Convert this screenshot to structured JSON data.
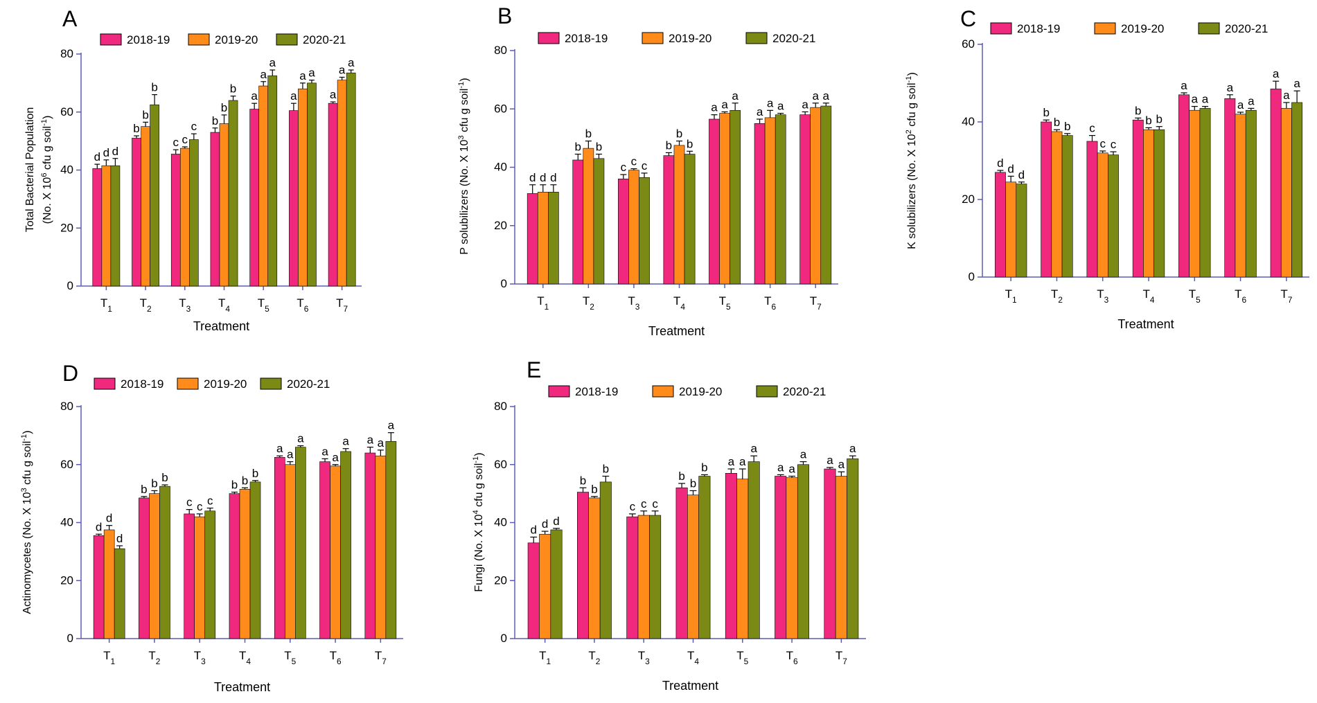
{
  "legend": {
    "labels": [
      "2018-19",
      "2019-20",
      "2020-21"
    ],
    "colors": [
      "#f0297e",
      "#ff8c1a",
      "#7b8a14"
    ]
  },
  "chart_data": [
    {
      "panel": "A",
      "type": "bar",
      "categories": [
        "T1",
        "T2",
        "T3",
        "T4",
        "T5",
        "T6",
        "T7"
      ],
      "xlabel": "Treatment",
      "ylabel": [
        "Total Bacterial Population",
        "(No. X 10^6 cfu g soil^-1)"
      ],
      "ylim": [
        0,
        80
      ],
      "yticks": [
        0,
        20,
        40,
        60,
        80
      ],
      "series": [
        {
          "name": "2018-19",
          "values": [
            40.5,
            51,
            45.5,
            53,
            61,
            60.5,
            63
          ],
          "errors": [
            1.5,
            0.8,
            1.5,
            1.5,
            2,
            2.5,
            0.5
          ],
          "letters": [
            "d",
            "b",
            "c",
            "b",
            "a",
            "a",
            "a"
          ]
        },
        {
          "name": "2019-20",
          "values": [
            41.5,
            55,
            47.5,
            56,
            69,
            68,
            71
          ],
          "errors": [
            2,
            1.5,
            0.5,
            3,
            1.5,
            2,
            1
          ],
          "letters": [
            "d",
            "b",
            "c",
            "b",
            "a",
            "a",
            "a"
          ]
        },
        {
          "name": "2020-21",
          "values": [
            41.5,
            62.5,
            50.5,
            64,
            72.5,
            70,
            73.5
          ],
          "errors": [
            2.5,
            3.5,
            2,
            1.5,
            2,
            1,
            1
          ],
          "letters": [
            "d",
            "b",
            "c",
            "b",
            "a",
            "a",
            "a"
          ]
        }
      ]
    },
    {
      "panel": "B",
      "type": "bar",
      "categories": [
        "T1",
        "T2",
        "T3",
        "T4",
        "T5",
        "T6",
        "T7"
      ],
      "xlabel": "Treatment",
      "ylabel": [
        "P solubilizers (No. X 10^3 cfu g soil^-1)"
      ],
      "ylim": [
        0,
        80
      ],
      "yticks": [
        0,
        20,
        40,
        60,
        80
      ],
      "series": [
        {
          "name": "2018-19",
          "values": [
            31,
            42.5,
            36,
            44,
            56.5,
            55,
            58
          ],
          "errors": [
            3,
            2,
            1.5,
            1,
            1.5,
            1.5,
            1
          ],
          "letters": [
            "d",
            "b",
            "c",
            "b",
            "a",
            "a",
            "a"
          ]
        },
        {
          "name": "2019-20",
          "values": [
            31.5,
            46.5,
            39,
            47.5,
            58.5,
            57,
            60.5
          ],
          "errors": [
            2.5,
            2.5,
            0.5,
            1.5,
            0.5,
            2.5,
            1.5
          ],
          "letters": [
            "d",
            "b",
            "c",
            "b",
            "a",
            "a",
            "a"
          ]
        },
        {
          "name": "2020-21",
          "values": [
            31.5,
            43,
            36.5,
            44.5,
            59.5,
            58,
            61
          ],
          "errors": [
            2.5,
            1.5,
            1.5,
            1,
            2.5,
            0.5,
            1
          ],
          "letters": [
            "d",
            "b",
            "c",
            "b",
            "a",
            "a",
            "a"
          ]
        }
      ]
    },
    {
      "panel": "C",
      "type": "bar",
      "categories": [
        "T1",
        "T2",
        "T3",
        "T4",
        "T5",
        "T6",
        "T7"
      ],
      "xlabel": "Treatment",
      "ylabel": [
        "K solubilizers (No. X 10^2 cfu g soil^-1)"
      ],
      "ylim": [
        0,
        60
      ],
      "yticks": [
        0,
        20,
        40,
        60
      ],
      "series": [
        {
          "name": "2018-19",
          "values": [
            27,
            40,
            35,
            40.5,
            47,
            46,
            48.5
          ],
          "errors": [
            0.5,
            0.5,
            1.5,
            0.5,
            0.5,
            1,
            2
          ],
          "letters": [
            "d",
            "b",
            "c",
            "b",
            "a",
            "a",
            "a"
          ]
        },
        {
          "name": "2019-20",
          "values": [
            24.5,
            37.5,
            32,
            38,
            43,
            42,
            43.5
          ],
          "errors": [
            1.5,
            0.5,
            0.5,
            0.5,
            1,
            0.5,
            1.5
          ],
          "letters": [
            "d",
            "b",
            "c",
            "b",
            "a",
            "a",
            "a"
          ]
        },
        {
          "name": "2020-21",
          "values": [
            24,
            36.5,
            31.5,
            38,
            43.5,
            43,
            45
          ],
          "errors": [
            0.5,
            0.5,
            0.8,
            0.8,
            0.5,
            0.5,
            3
          ],
          "letters": [
            "d",
            "b",
            "c",
            "b",
            "a",
            "a",
            "a"
          ]
        }
      ]
    },
    {
      "panel": "D",
      "type": "bar",
      "categories": [
        "T1",
        "T2",
        "T3",
        "T4",
        "T5",
        "T6",
        "T7"
      ],
      "xlabel": "Treatment",
      "ylabel": [
        "Actinomycetes (No. X 10^3 cfu g soil^-1)"
      ],
      "ylim": [
        0,
        80
      ],
      "yticks": [
        0,
        20,
        40,
        60,
        80
      ],
      "series": [
        {
          "name": "2018-19",
          "values": [
            35.5,
            48.5,
            43,
            50,
            62.5,
            61,
            64
          ],
          "errors": [
            0.5,
            0.5,
            1.5,
            0.5,
            0.5,
            1,
            2
          ],
          "letters": [
            "d",
            "b",
            "c",
            "b",
            "a",
            "a",
            "a"
          ]
        },
        {
          "name": "2019-20",
          "values": [
            37.5,
            50,
            42,
            51.5,
            60,
            59.5,
            63
          ],
          "errors": [
            1.5,
            1,
            1,
            0.5,
            1,
            0.5,
            2
          ],
          "letters": [
            "d",
            "b",
            "c",
            "b",
            "a",
            "a",
            "a"
          ]
        },
        {
          "name": "2020-21",
          "values": [
            31,
            52.5,
            44,
            54,
            66,
            64.5,
            68
          ],
          "errors": [
            1,
            0.5,
            1,
            0.5,
            0.5,
            1,
            3
          ],
          "letters": [
            "d",
            "b",
            "c",
            "b",
            "a",
            "a",
            "a"
          ]
        }
      ]
    },
    {
      "panel": "E",
      "type": "bar",
      "categories": [
        "T1",
        "T2",
        "T3",
        "T4",
        "T5",
        "T6",
        "T7"
      ],
      "xlabel": "Treatment",
      "ylabel": [
        "Fungi (No. X 10^4 cfu g soil^-1)"
      ],
      "ylim": [
        0,
        80
      ],
      "yticks": [
        0,
        20,
        40,
        60,
        80
      ],
      "series": [
        {
          "name": "2018-19",
          "values": [
            33,
            50.5,
            42,
            52,
            57,
            56,
            58.5
          ],
          "errors": [
            2,
            1.5,
            1,
            1.5,
            1.5,
            0.5,
            0.5
          ],
          "letters": [
            "d",
            "b",
            "c",
            "b",
            "a",
            "a",
            "a"
          ]
        },
        {
          "name": "2019-20",
          "values": [
            36,
            48.5,
            42.5,
            49.5,
            55,
            55.5,
            56
          ],
          "errors": [
            1,
            0.5,
            1.5,
            1.5,
            3.5,
            0.5,
            1.5
          ],
          "letters": [
            "d",
            "b",
            "c",
            "b",
            "a",
            "a",
            "a"
          ]
        },
        {
          "name": "2020-21",
          "values": [
            37.5,
            54,
            42.5,
            56,
            61,
            60,
            62
          ],
          "errors": [
            0.5,
            2,
            1.5,
            0.5,
            2,
            1,
            1
          ],
          "letters": [
            "d",
            "b",
            "c",
            "b",
            "a",
            "a",
            "a"
          ]
        }
      ]
    }
  ]
}
